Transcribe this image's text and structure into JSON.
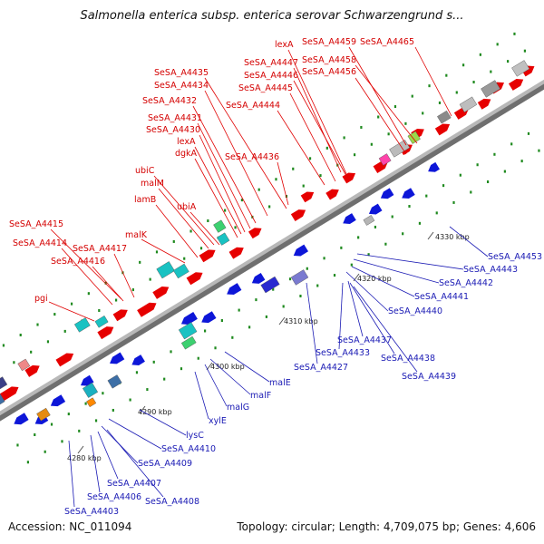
{
  "title": "Salmonella enterica subsp. enterica serovar Schwarzengrund s...",
  "accession": "Accession: NC_011094",
  "info": "Topology: circular; Length: 4,709,075 bp; Genes: 4,606",
  "colors": {
    "forward_label": "#d40000",
    "reverse_label": "#1a1ab4",
    "forward_gene": "#e60000",
    "reverse_gene": "#0d16d8",
    "backbone": "#9a9a9a",
    "tick_green": "#1f8a1f"
  },
  "ticks": [
    "4280 kbp",
    "4290 kbp",
    "4300 kbp",
    "4310 kbp",
    "4320 kbp",
    "4330 kbp"
  ],
  "forward_labels": [
    "SeSA_A4459",
    "SeSA_A4465",
    "lexA",
    "SeSA_A4447",
    "SeSA_A4458",
    "SeSA_A4446",
    "SeSA_A4456",
    "SeSA_A4435",
    "SeSA_A4445",
    "SeSA_A4434",
    "SeSA_A4432",
    "SeSA_A4444",
    "SeSA_A4431",
    "SeSA_A4430",
    "lexA",
    "dgkA",
    "SeSA_A4436",
    "ubiC",
    "malM",
    "lamB",
    "ubiA",
    "malK",
    "SeSA_A4415",
    "SeSA_A4414",
    "SeSA_A4417",
    "SeSA_A4416",
    "pgi"
  ],
  "reverse_labels": [
    "SeSA_A4453",
    "SeSA_A4443",
    "SeSA_A4442",
    "SeSA_A4441",
    "SeSA_A4440",
    "SeSA_A4437",
    "SeSA_A4433",
    "SeSA_A4438",
    "SeSA_A4427",
    "SeSA_A4439",
    "malE",
    "malF",
    "malG",
    "xylE",
    "lysC",
    "SeSA_A4410",
    "SeSA_A4409",
    "SeSA_A4407",
    "SeSA_A4406",
    "SeSA_A4408",
    "SeSA_A4403"
  ]
}
